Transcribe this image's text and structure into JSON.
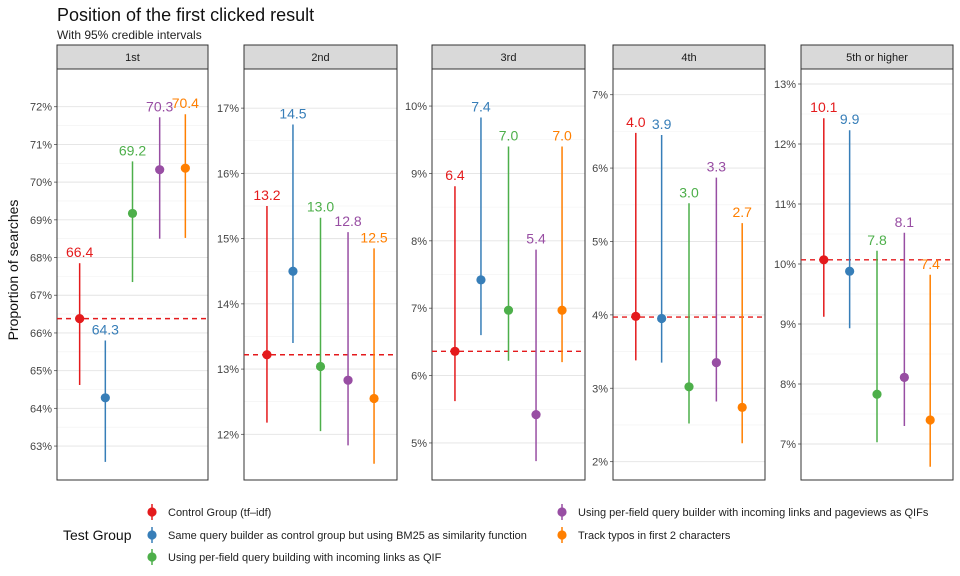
{
  "chart_data": {
    "type": "errorbar",
    "title": "Position of the first clicked result",
    "subtitle": "With 95% credible intervals",
    "ylabel": "Proportion of searches",
    "legend_title": "Test Group",
    "legend_position": "bottom",
    "series": [
      {
        "name": "Control Group (tf–idf)",
        "color": "#e41a1c"
      },
      {
        "name": "Same query builder as control group but using BM25 as similarity function",
        "color": "#377eb8"
      },
      {
        "name": "Using per-field query building with incoming links as QIF",
        "color": "#4daf4a"
      },
      {
        "name": "Using per-field query builder with incoming links and pageviews as QIFs",
        "color": "#984ea3"
      },
      {
        "name": "Track typos in first 2 characters",
        "color": "#ff7f00"
      }
    ],
    "panels": [
      {
        "strip": "1st",
        "ylim": [
          62.1,
          73.0
        ],
        "ticks": [
          63,
          64,
          65,
          66,
          67,
          68,
          69,
          70,
          71,
          72
        ],
        "tick_labels": [
          "63%",
          "64%",
          "65%",
          "66%",
          "67%",
          "68%",
          "69%",
          "70%",
          "71%",
          "72%"
        ],
        "baseline": 66.38,
        "points": [
          {
            "value": 66.38,
            "lower": 64.62,
            "upper": 67.85,
            "label": "66.4"
          },
          {
            "value": 64.28,
            "lower": 62.58,
            "upper": 65.8,
            "label": "64.3"
          },
          {
            "value": 69.17,
            "lower": 67.35,
            "upper": 70.55,
            "label": "69.2"
          },
          {
            "value": 70.33,
            "lower": 68.5,
            "upper": 71.72,
            "label": "70.3"
          },
          {
            "value": 70.37,
            "lower": 68.52,
            "upper": 71.8,
            "label": "70.4"
          }
        ]
      },
      {
        "strip": "2nd",
        "ylim": [
          11.3,
          17.6
        ],
        "ticks": [
          12,
          13,
          14,
          15,
          16,
          17
        ],
        "tick_labels": [
          "12%",
          "13%",
          "14%",
          "15%",
          "16%",
          "17%"
        ],
        "baseline": 13.22,
        "points": [
          {
            "value": 13.22,
            "lower": 12.18,
            "upper": 15.5,
            "label": "13.2"
          },
          {
            "value": 14.5,
            "lower": 13.4,
            "upper": 16.75,
            "label": "14.5"
          },
          {
            "value": 13.04,
            "lower": 12.05,
            "upper": 15.32,
            "label": "13.0"
          },
          {
            "value": 12.83,
            "lower": 11.83,
            "upper": 15.1,
            "label": "12.8"
          },
          {
            "value": 12.55,
            "lower": 11.55,
            "upper": 14.85,
            "label": "12.5"
          }
        ]
      },
      {
        "strip": "3rd",
        "ylim": [
          4.45,
          10.55
        ],
        "ticks": [
          5,
          6,
          7,
          8,
          9,
          10
        ],
        "tick_labels": [
          "5%",
          "6%",
          "7%",
          "8%",
          "9%",
          "10%"
        ],
        "baseline": 6.36,
        "points": [
          {
            "value": 6.36,
            "lower": 5.62,
            "upper": 8.81,
            "label": "6.4"
          },
          {
            "value": 7.42,
            "lower": 6.6,
            "upper": 9.83,
            "label": "7.4"
          },
          {
            "value": 6.97,
            "lower": 6.22,
            "upper": 9.4,
            "label": "7.0"
          },
          {
            "value": 5.42,
            "lower": 4.73,
            "upper": 7.87,
            "label": "5.4"
          },
          {
            "value": 6.97,
            "lower": 6.2,
            "upper": 9.4,
            "label": "7.0"
          }
        ]
      },
      {
        "strip": "4th",
        "ylim": [
          1.75,
          7.35
        ],
        "ticks": [
          2,
          3,
          4,
          5,
          6,
          7
        ],
        "tick_labels": [
          "2%",
          "3%",
          "4%",
          "5%",
          "6%",
          "7%"
        ],
        "baseline": 3.97,
        "points": [
          {
            "value": 3.98,
            "lower": 3.38,
            "upper": 6.48,
            "label": "4.0"
          },
          {
            "value": 3.95,
            "lower": 3.35,
            "upper": 6.45,
            "label": "3.9"
          },
          {
            "value": 3.02,
            "lower": 2.52,
            "upper": 5.52,
            "label": "3.0"
          },
          {
            "value": 3.35,
            "lower": 2.82,
            "upper": 5.87,
            "label": "3.3"
          },
          {
            "value": 2.74,
            "lower": 2.25,
            "upper": 5.25,
            "label": "2.7"
          }
        ]
      },
      {
        "strip": "5th or higher",
        "ylim": [
          6.4,
          13.25
        ],
        "ticks": [
          7,
          8,
          9,
          10,
          11,
          12,
          13
        ],
        "tick_labels": [
          "7%",
          "8%",
          "9%",
          "10%",
          "11%",
          "12%",
          "13%"
        ],
        "baseline": 10.07,
        "points": [
          {
            "value": 10.07,
            "lower": 9.12,
            "upper": 12.43,
            "label": "10.1"
          },
          {
            "value": 9.88,
            "lower": 8.93,
            "upper": 12.23,
            "label": "9.9"
          },
          {
            "value": 7.83,
            "lower": 7.03,
            "upper": 10.22,
            "label": "7.8"
          },
          {
            "value": 8.11,
            "lower": 7.3,
            "upper": 10.52,
            "label": "8.1"
          },
          {
            "value": 7.4,
            "lower": 6.62,
            "upper": 9.82,
            "label": "7.4"
          }
        ]
      }
    ]
  }
}
